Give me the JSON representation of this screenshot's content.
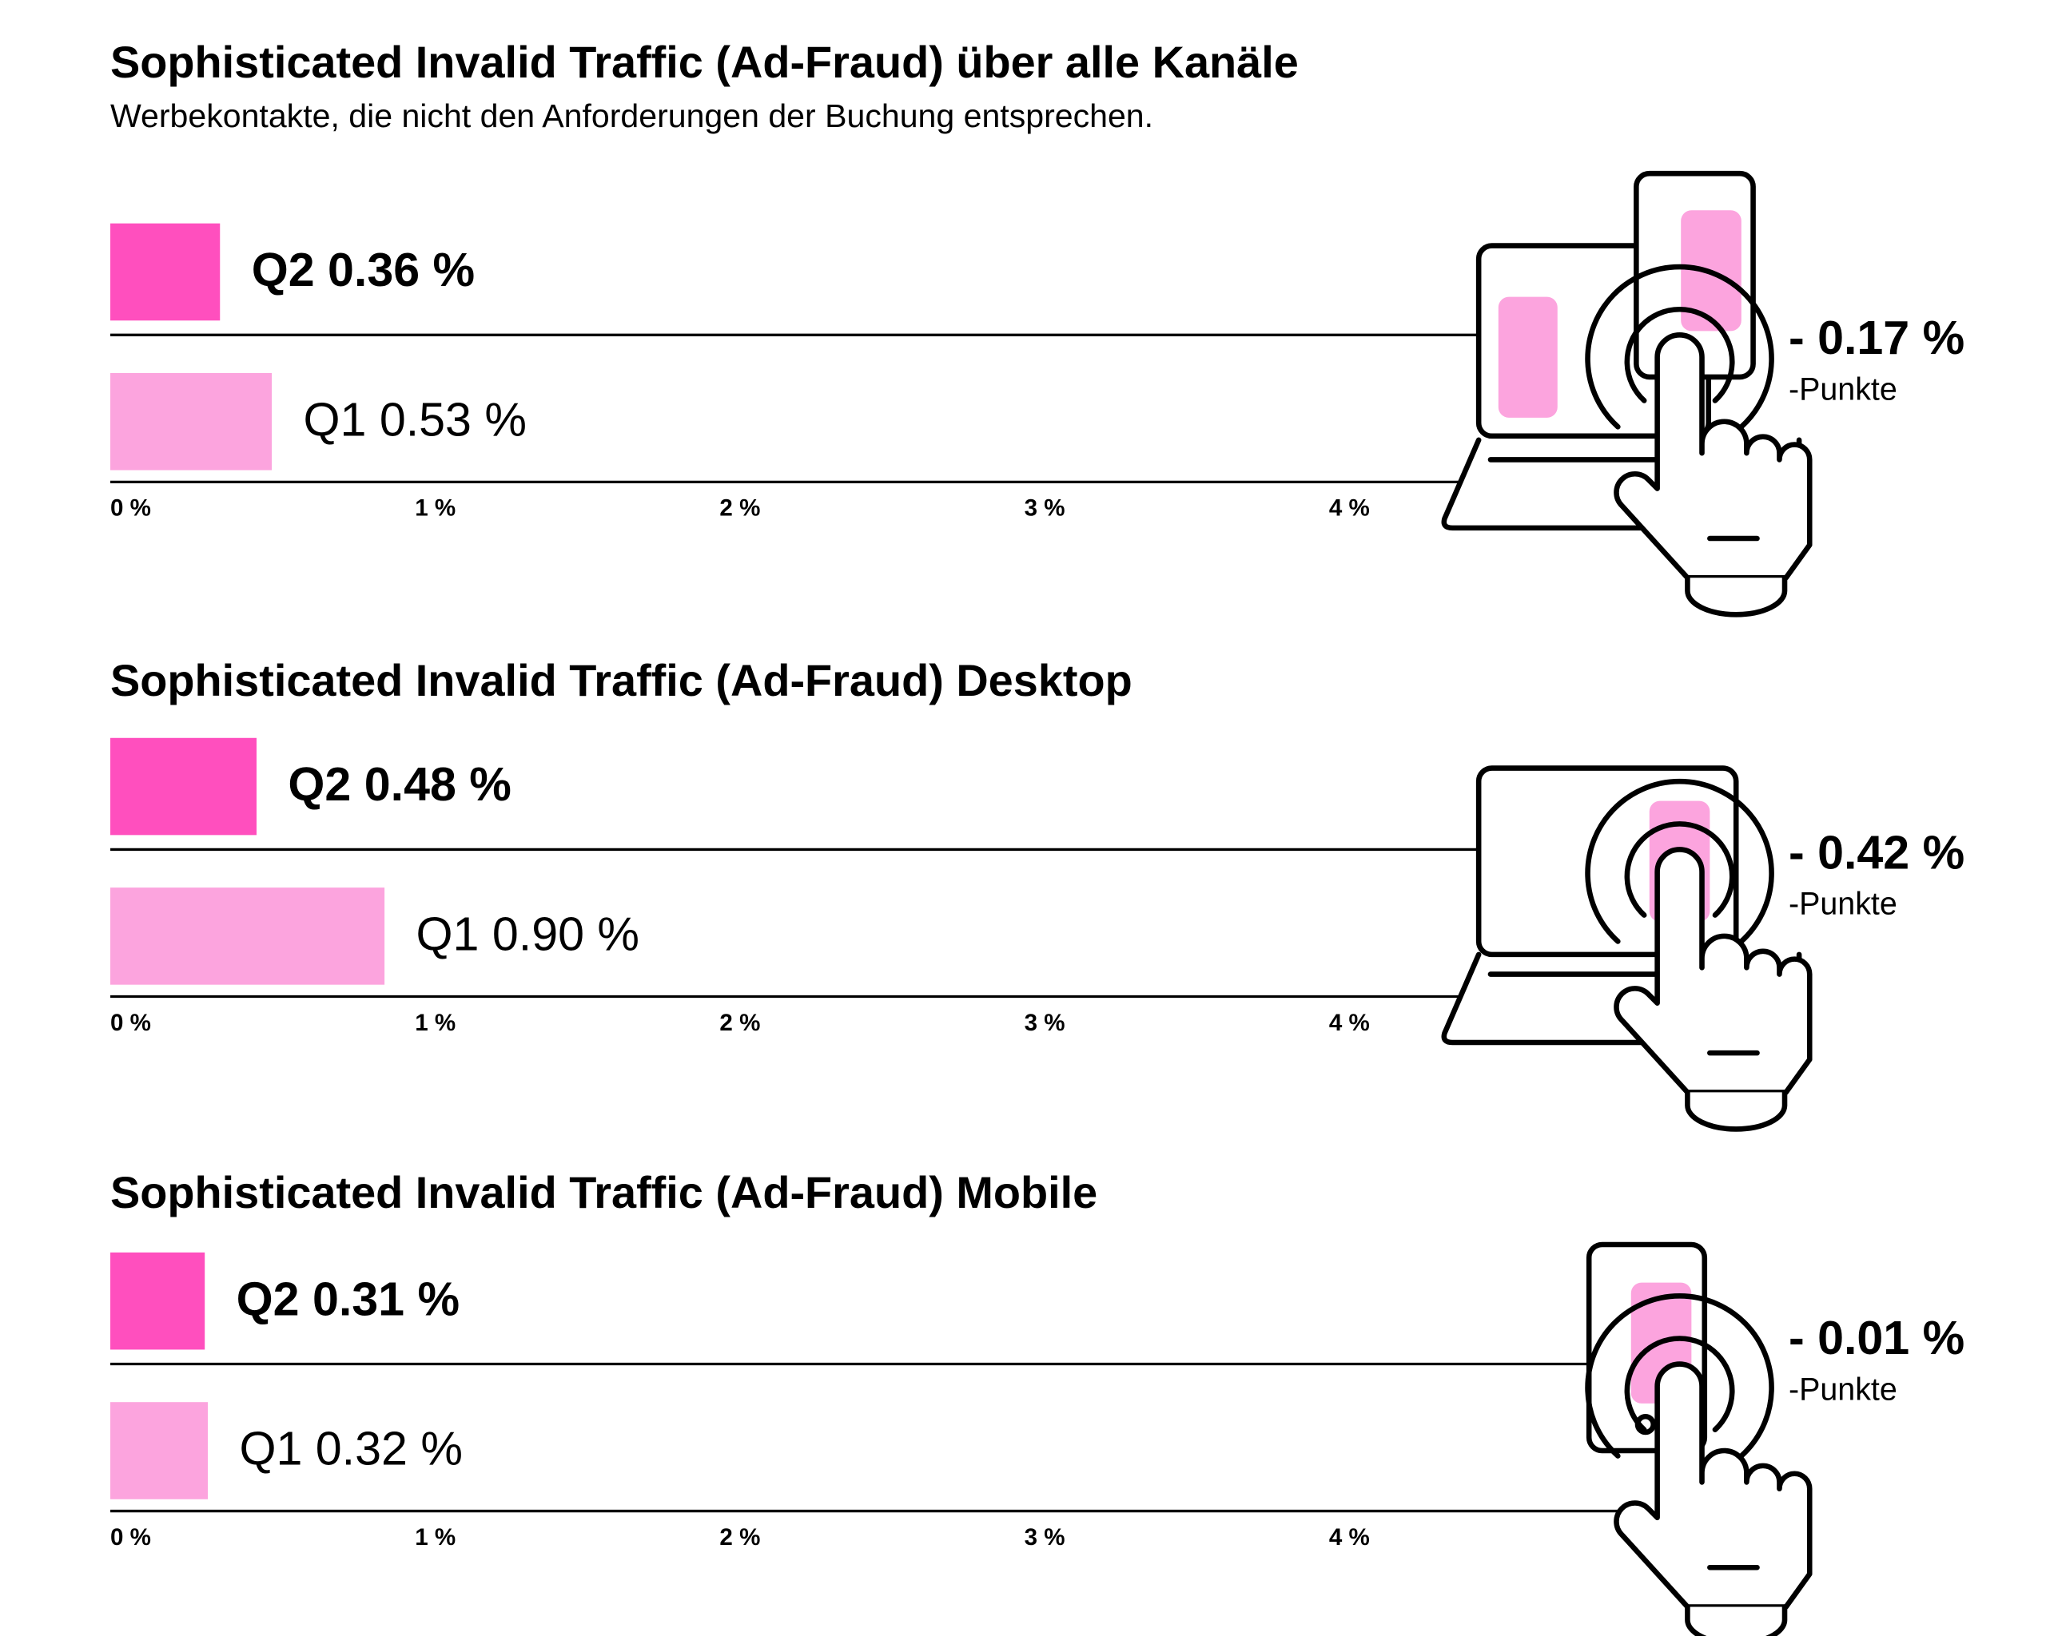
{
  "chart_data": [
    {
      "type": "bar",
      "title": "Sophisticated Invalid Traffic (Ad-Fraud) über alle Kanäle",
      "subtitle": "Werbekontakte, die nicht den Anforderungen der Buchung entsprechen.",
      "categories": [
        "Q2",
        "Q1"
      ],
      "values": [
        0.36,
        0.53
      ],
      "value_labels": [
        "0.36 %",
        "0.53 %"
      ],
      "colors": [
        "#ff4fbe",
        "#fca4de"
      ],
      "xlim": [
        0,
        5
      ],
      "xticks": [
        {
          "value": 0,
          "label": "0 %"
        },
        {
          "value": 1,
          "label": "1 %"
        },
        {
          "value": 2,
          "label": "2 %"
        },
        {
          "value": 3,
          "label": "3 %"
        },
        {
          "value": 4,
          "label": "4 %"
        }
      ],
      "annotation": "- 0.17 %",
      "annotation_note": "-Punkte"
    },
    {
      "type": "bar",
      "title": "Sophisticated Invalid Traffic (Ad-Fraud) Desktop",
      "categories": [
        "Q2",
        "Q1"
      ],
      "values": [
        0.48,
        0.9
      ],
      "value_labels": [
        "0.48 %",
        "0.90 %"
      ],
      "colors": [
        "#ff4fbe",
        "#fca4de"
      ],
      "xlim": [
        0,
        5
      ],
      "xticks": [
        {
          "value": 0,
          "label": "0 %"
        },
        {
          "value": 1,
          "label": "1 %"
        },
        {
          "value": 2,
          "label": "2 %"
        },
        {
          "value": 3,
          "label": "3 %"
        },
        {
          "value": 4,
          "label": "4 %"
        }
      ],
      "annotation": "- 0.42 %",
      "annotation_note": "-Punkte"
    },
    {
      "type": "bar",
      "title": "Sophisticated Invalid Traffic (Ad-Fraud) Mobile",
      "categories": [
        "Q2",
        "Q1"
      ],
      "values": [
        0.31,
        0.32
      ],
      "value_labels": [
        "0.31 %",
        "0.32 %"
      ],
      "colors": [
        "#ff4fbe",
        "#fca4de"
      ],
      "xlim": [
        0,
        5
      ],
      "xticks": [
        {
          "value": 0,
          "label": "0 %"
        },
        {
          "value": 1,
          "label": "1 %"
        },
        {
          "value": 2,
          "label": "2 %"
        },
        {
          "value": 3,
          "label": "3 %"
        },
        {
          "value": 4,
          "label": "4 %"
        }
      ],
      "annotation": "- 0.01 %",
      "annotation_note": "-Punkte"
    }
  ]
}
